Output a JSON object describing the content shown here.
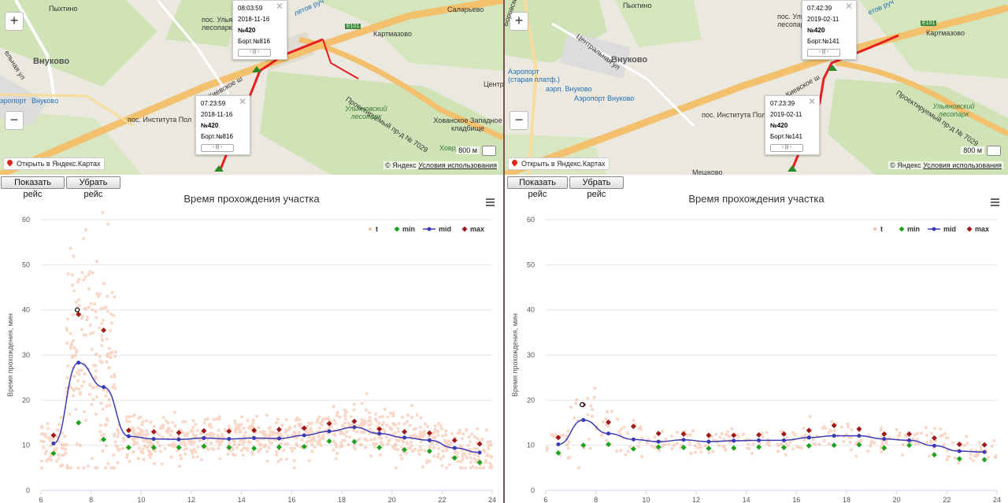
{
  "panes": [
    {
      "id": "left",
      "map": {
        "labels": [
          "Пыхтино",
          "пос. Ульяновс",
          "лесопарк",
          "Саларьево",
          "Картмазово",
          "Внуково",
          "Проектируемый пр-д № 7029",
          "Киевское ш",
          "пос. Института Пол",
          "Ульяновский лесопарк",
          "Хованское Западное кладбище",
          "Центр",
          "эропорт",
          "Внуково",
          "Ховрд.",
          "Е101",
          "летов руч",
          "ельная ул"
        ],
        "popups": [
          {
            "time": "08:03:59",
            "date": "2018-11-16",
            "num": "№420",
            "board": "Борт.№816"
          },
          {
            "time": "07:23:59",
            "date": "2018-11-16",
            "num": "№420",
            "board": "Борт.№816"
          }
        ],
        "scale": "800 м",
        "open_link": "Открыть в Яндекс.Картах",
        "copyright": "© Яндекс",
        "terms": "Условия использования"
      },
      "buttons": {
        "show": "Показать рейс",
        "hide": "Убрать рейс"
      }
    },
    {
      "id": "right",
      "map": {
        "labels": [
          "Пыхтино",
          "пос. Ульяновс",
          "лесопарк",
          "Картмазово",
          "Внуково",
          "Проектируемый пр-д № 7029",
          "Киевское ш",
          "пос. Института Пол",
          "Ульяновский лесопарк",
          "Аэропорт (старая платф.)",
          "аэрп. Внуково",
          "Аэропорт Внуково",
          "Центральная ул",
          "Боровское ш",
          "Мешково",
          "Е101",
          "етов руч"
        ],
        "popups": [
          {
            "time": "07:42:39",
            "date": "2019-02-11",
            "num": "№420",
            "board": "Борт.№141"
          },
          {
            "time": "07:23:39",
            "date": "2019-02-11",
            "num": "№420",
            "board": "Борт.№141"
          }
        ],
        "scale": "800 м",
        "open_link": "Открыть в Яндекс.Картах",
        "copyright": "© Яндекс",
        "terms": "Условия использования"
      },
      "buttons": {
        "show": "Показать рейс",
        "hide": "Убрать рейс"
      }
    }
  ],
  "colors": {
    "t": "#f4a582",
    "min": "#1fa31f",
    "mid": "#3a3ab5",
    "max": "#a01818",
    "red_track": "#e81e1e"
  },
  "chart_data": [
    {
      "type": "scatter",
      "title": "Время прохождения участка",
      "ylabel": "Время прохождения, мин",
      "xlabel": "",
      "xlim": [
        6,
        24
      ],
      "ylim": [
        0,
        60
      ],
      "xticks": [
        6,
        8,
        10,
        12,
        14,
        16,
        18,
        20,
        22,
        24
      ],
      "yticks": [
        0,
        10,
        20,
        30,
        40,
        50,
        60
      ],
      "legend": [
        "t",
        "min",
        "mid",
        "max"
      ],
      "legend_position": "top-right",
      "grid": true,
      "series": [
        {
          "name": "min",
          "x": [
            6.5,
            7.5,
            8.5,
            9.5,
            10.5,
            11.5,
            12.5,
            13.5,
            14.5,
            15.5,
            16.5,
            17.5,
            18.5,
            19.5,
            20.5,
            21.5,
            22.5,
            23.5
          ],
          "values": [
            8.2,
            15,
            11.3,
            9.5,
            9.5,
            9.5,
            9.8,
            9.5,
            9.3,
            9.6,
            9.7,
            10.9,
            10.8,
            9.5,
            9,
            8.7,
            7.2,
            6.2
          ]
        },
        {
          "name": "mid",
          "x": [
            6.5,
            7.5,
            8.5,
            9.5,
            10.5,
            11.5,
            12.5,
            13.5,
            14.5,
            15.5,
            16.5,
            17.5,
            18.5,
            19.5,
            20.5,
            21.5,
            22.5,
            23.5
          ],
          "values": [
            10.4,
            28.3,
            22.9,
            12,
            11.4,
            11.3,
            11.6,
            11.4,
            11.6,
            11.5,
            12.2,
            13.1,
            14,
            12.6,
            11.7,
            11.1,
            9.4,
            8.4
          ]
        },
        {
          "name": "max",
          "x": [
            6.5,
            7.5,
            8.5,
            9.5,
            10.5,
            11.5,
            12.5,
            13.5,
            14.5,
            15.5,
            16.5,
            17.5,
            18.5,
            19.5,
            20.5,
            21.5,
            22.5,
            23.5
          ],
          "values": [
            12.2,
            39,
            35.5,
            13.3,
            13,
            12.8,
            13.2,
            13.1,
            13.3,
            13.5,
            13.8,
            14.8,
            15.3,
            13.6,
            13,
            12.7,
            11.1,
            10.3
          ]
        }
      ],
      "highlight": {
        "x": 7.45,
        "y": 40
      }
    },
    {
      "type": "scatter",
      "title": "Время прохождения участка",
      "ylabel": "Время прохождения, мин",
      "xlabel": "",
      "xlim": [
        6,
        24
      ],
      "ylim": [
        0,
        60
      ],
      "xticks": [
        6,
        8,
        10,
        12,
        14,
        16,
        18,
        20,
        22,
        24
      ],
      "yticks": [
        0,
        10,
        20,
        30,
        40,
        50,
        60
      ],
      "legend": [
        "t",
        "min",
        "mid",
        "max"
      ],
      "legend_position": "top-right",
      "grid": true,
      "series": [
        {
          "name": "min",
          "x": [
            6.5,
            7.5,
            8.5,
            9.5,
            10.5,
            11.5,
            12.5,
            13.5,
            14.5,
            15.5,
            16.5,
            17.5,
            18.5,
            19.5,
            20.5,
            21.5,
            22.5,
            23.5
          ],
          "values": [
            8.3,
            10,
            10.2,
            9.2,
            9.6,
            9.5,
            9.3,
            9.4,
            9.6,
            9.5,
            9.9,
            10,
            10.1,
            9.4,
            10,
            7.9,
            7,
            6.8
          ]
        },
        {
          "name": "mid",
          "x": [
            6.5,
            7.5,
            8.5,
            9.5,
            10.5,
            11.5,
            12.5,
            13.5,
            14.5,
            15.5,
            16.5,
            17.5,
            18.5,
            19.5,
            20.5,
            21.5,
            22.5,
            23.5
          ],
          "values": [
            10.2,
            15.6,
            12.6,
            11.3,
            10.8,
            11.2,
            10.8,
            11,
            11.1,
            11.1,
            11.7,
            12.1,
            12.1,
            11.4,
            11.1,
            9.9,
            8.7,
            8.5
          ]
        },
        {
          "name": "max",
          "x": [
            6.5,
            7.5,
            8.5,
            9.5,
            10.5,
            11.5,
            12.5,
            13.5,
            14.5,
            15.5,
            16.5,
            17.5,
            18.5,
            19.5,
            20.5,
            21.5,
            22.5,
            23.5
          ],
          "values": [
            11.7,
            19,
            15.1,
            14.2,
            12.6,
            12.5,
            12.2,
            12.2,
            12.3,
            12.5,
            13.3,
            14.4,
            13.6,
            12.5,
            12.5,
            11.6,
            10.2,
            10.1
          ]
        }
      ],
      "highlight": {
        "x": 7.45,
        "y": 19
      }
    }
  ]
}
